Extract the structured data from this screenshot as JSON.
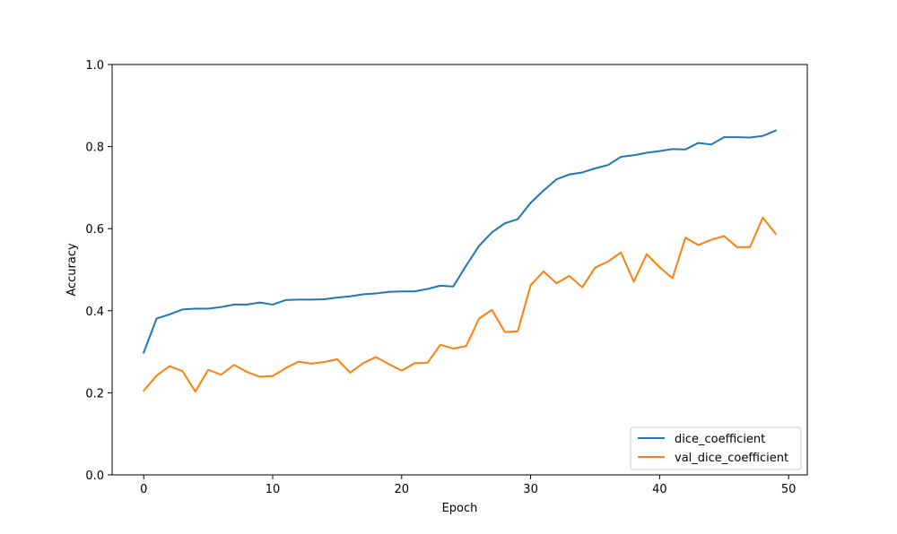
{
  "chart_data": {
    "type": "line",
    "title": "",
    "xlabel": "Epoch",
    "ylabel": "Accuracy",
    "xlim": [
      -2.45,
      51.45
    ],
    "ylim": [
      0,
      1
    ],
    "xticks": [
      0,
      10,
      20,
      30,
      40,
      50
    ],
    "xtick_labels": [
      "0",
      "10",
      "20",
      "30",
      "40",
      "50"
    ],
    "yticks": [
      0,
      0.2,
      0.4,
      0.6,
      0.8,
      1.0
    ],
    "ytick_labels": [
      "0.0",
      "0.2",
      "0.4",
      "0.6",
      "0.8",
      "1.0"
    ],
    "grid": false,
    "legend_position": "lower-right",
    "x": [
      0,
      1,
      2,
      3,
      4,
      5,
      6,
      7,
      8,
      9,
      10,
      11,
      12,
      13,
      14,
      15,
      16,
      17,
      18,
      19,
      20,
      21,
      22,
      23,
      24,
      25,
      26,
      27,
      28,
      29,
      30,
      31,
      32,
      33,
      34,
      35,
      36,
      37,
      38,
      39,
      40,
      41,
      42,
      43,
      44,
      45,
      46,
      47,
      48,
      49
    ],
    "series": [
      {
        "name": "dice_coefficient",
        "color": "#1f77b4",
        "values": [
          0.298,
          0.381,
          0.391,
          0.403,
          0.405,
          0.405,
          0.409,
          0.415,
          0.415,
          0.42,
          0.415,
          0.426,
          0.427,
          0.427,
          0.428,
          0.432,
          0.435,
          0.44,
          0.442,
          0.446,
          0.447,
          0.447,
          0.453,
          0.461,
          0.459,
          0.51,
          0.558,
          0.591,
          0.613,
          0.623,
          0.663,
          0.693,
          0.72,
          0.732,
          0.737,
          0.747,
          0.755,
          0.775,
          0.779,
          0.785,
          0.789,
          0.794,
          0.793,
          0.809,
          0.805,
          0.823,
          0.823,
          0.822,
          0.826,
          0.839
        ]
      },
      {
        "name": "val_dice_coefficient",
        "color": "#ff7f0e",
        "values": [
          0.205,
          0.242,
          0.265,
          0.253,
          0.203,
          0.256,
          0.244,
          0.268,
          0.251,
          0.239,
          0.241,
          0.26,
          0.276,
          0.271,
          0.275,
          0.282,
          0.249,
          0.272,
          0.287,
          0.27,
          0.254,
          0.272,
          0.273,
          0.317,
          0.308,
          0.314,
          0.381,
          0.402,
          0.348,
          0.35,
          0.462,
          0.496,
          0.467,
          0.485,
          0.457,
          0.505,
          0.52,
          0.542,
          0.471,
          0.538,
          0.506,
          0.479,
          0.578,
          0.56,
          0.573,
          0.582,
          0.555,
          0.555,
          0.627,
          0.587
        ]
      }
    ]
  }
}
